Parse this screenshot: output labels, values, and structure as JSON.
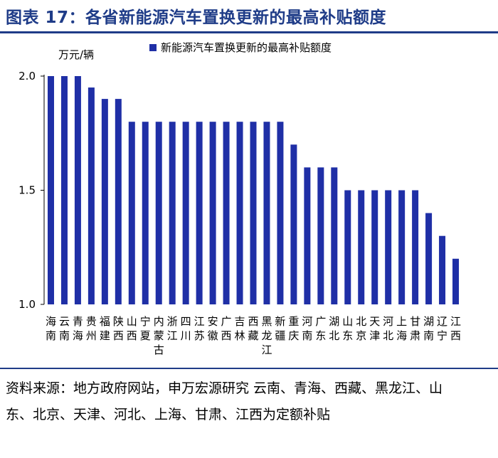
{
  "title": "图表 17：各省新能源汽车置换更新的最高补贴额度",
  "source": "资料来源：地方政府网站，申万宏源研究  云南、青海、西藏、黑龙江、山东、北京、天津、河北、上海、甘肃、江西为定额补贴",
  "chart_data": {
    "type": "bar",
    "ylabel": "万元/辆",
    "ylim": [
      1.0,
      2.0
    ],
    "yticks": [
      "1.0",
      "1.5",
      "2.0"
    ],
    "grid": false,
    "legend_position": "top",
    "series": [
      {
        "name": "新能源汽车置换更新的最高补贴额度",
        "color": "#1f2fa6",
        "values": [
          2.0,
          2.0,
          2.0,
          1.95,
          1.9,
          1.9,
          1.8,
          1.8,
          1.8,
          1.8,
          1.8,
          1.8,
          1.8,
          1.8,
          1.8,
          1.8,
          1.8,
          1.8,
          1.7,
          1.6,
          1.6,
          1.6,
          1.5,
          1.5,
          1.5,
          1.5,
          1.5,
          1.5,
          1.4,
          1.3,
          1.2
        ]
      }
    ],
    "categories": [
      "海南",
      "云南",
      "青海",
      "贵州",
      "福建",
      "陕西",
      "山西",
      "宁夏",
      "内蒙古",
      "浙江",
      "四川",
      "江苏",
      "安徽",
      "广西",
      "吉林",
      "西藏",
      "黑龙江",
      "新疆",
      "重庆",
      "河南",
      "广东",
      "湖北",
      "山东",
      "北京",
      "天津",
      "河北",
      "上海",
      "甘肃",
      "湖南",
      "辽宁",
      "江西"
    ]
  }
}
